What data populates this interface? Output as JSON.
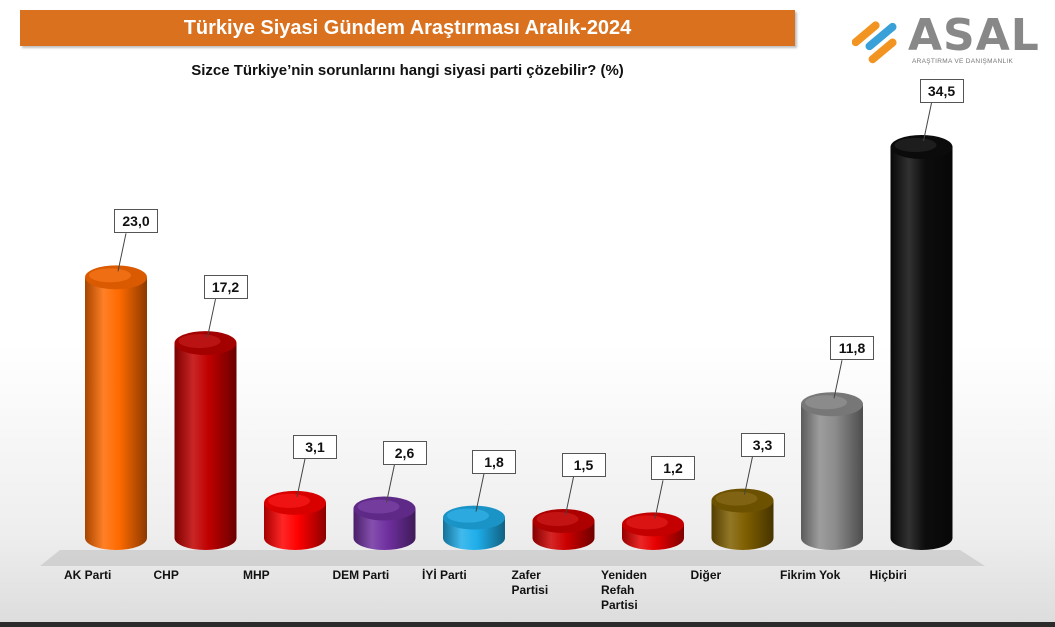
{
  "header": {
    "title": "Türkiye Siyasi Gündem Araştırması Aralık-2024",
    "subtitle": "Sizce Türkiye’nin sorunlarını hangi siyasi parti çözebilir? (%)"
  },
  "logo": {
    "wordmark": "ASAL",
    "tagline": "ARAŞTIRMA VE DANIŞMANLIK",
    "colors": [
      "#f29422",
      "#3aa0d8"
    ]
  },
  "chart_data": {
    "type": "bar",
    "title": "Sizce Türkiye’nin sorunlarını hangi siyasi parti çözebilir? (%)",
    "categories": [
      "AK Parti",
      "CHP",
      "MHP",
      "DEM Parti",
      "İYİ Parti",
      "Zafer Partisi",
      "Yeniden Refah Partisi",
      "Diğer",
      "Fikrim Yok",
      "Hiçbiri"
    ],
    "category_lines": [
      [
        "AK Parti"
      ],
      [
        "CHP"
      ],
      [
        "MHP"
      ],
      [
        "DEM Parti"
      ],
      [
        "İYİ Parti"
      ],
      [
        "Zafer",
        "Partisi"
      ],
      [
        "Yeniden",
        "Refah",
        "Partisi"
      ],
      [
        "Diğer"
      ],
      [
        "Fikrim Yok"
      ],
      [
        "Hiçbiri"
      ]
    ],
    "values": [
      23.0,
      17.2,
      3.1,
      2.6,
      1.8,
      1.5,
      1.2,
      3.3,
      11.8,
      34.5
    ],
    "value_labels": [
      "23,0",
      "17,2",
      "3,1",
      "2,6",
      "1,8",
      "1,5",
      "1,2",
      "3,3",
      "11,8",
      "34,5"
    ],
    "colors": [
      "#ff6a00",
      "#c00000",
      "#ff0000",
      "#7030a0",
      "#1eaeea",
      "#cc0000",
      "#e60000",
      "#7f5f00",
      "#8c8c8c",
      "#0d0d0d"
    ],
    "ylim": [
      0,
      36
    ],
    "grid": false,
    "legend": "none",
    "style": "3d-cylinder"
  }
}
